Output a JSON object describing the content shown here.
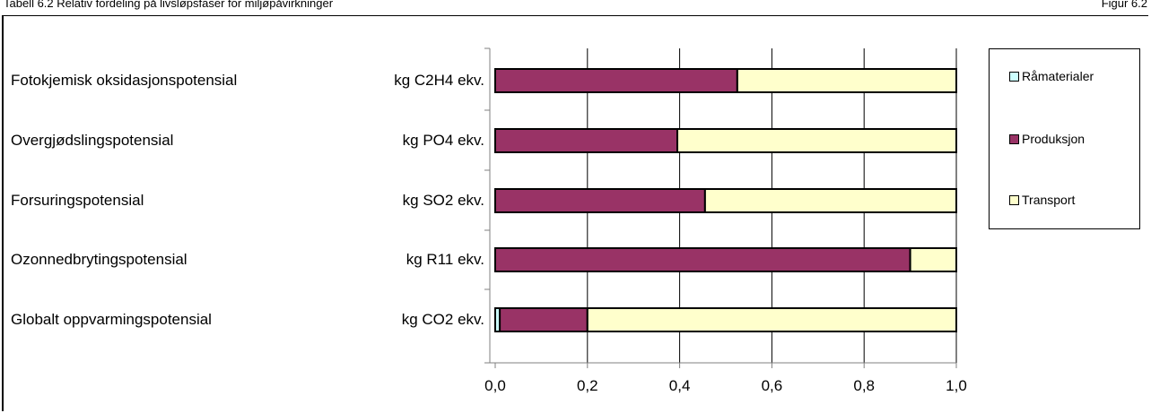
{
  "header": {
    "left_text": "Tabell 6.2 Relativ fordeling på livsløpsfaser for miljøpåvirkninger",
    "right_text": "Figur 6.2"
  },
  "colors": {
    "Råmaterialer": "#CCFFFF",
    "Produksjon": "#993366",
    "Transport": "#FFFFCC",
    "gridline": "#000000"
  },
  "chart_data": {
    "type": "bar",
    "orientation": "horizontal",
    "stacked": true,
    "categories": [
      "Fotokjemisk oksidasjonspotensial",
      "Overgjødslingspotensial",
      "Forsuringspotensial",
      "Ozonnedbrytingspotensial",
      "Globalt oppvarmingspotensial"
    ],
    "units": [
      "kg C2H4 ekv.",
      "kg PO4 ekv.",
      "kg SO2 ekv.",
      "kg R11 ekv.",
      "kg CO2 ekv."
    ],
    "series": [
      {
        "name": "Råmaterialer",
        "values": [
          0.0,
          0.0,
          0.0,
          0.0,
          0.01
        ]
      },
      {
        "name": "Produksjon",
        "values": [
          0.525,
          0.395,
          0.455,
          0.9,
          0.19
        ]
      },
      {
        "name": "Transport",
        "values": [
          0.475,
          0.605,
          0.545,
          0.1,
          0.8
        ]
      }
    ],
    "xlim": [
      0,
      1
    ],
    "xticks": [
      "0,0",
      "0,2",
      "0,4",
      "0,6",
      "0,8",
      "1,0"
    ],
    "grid": true,
    "legend_position": "right"
  }
}
